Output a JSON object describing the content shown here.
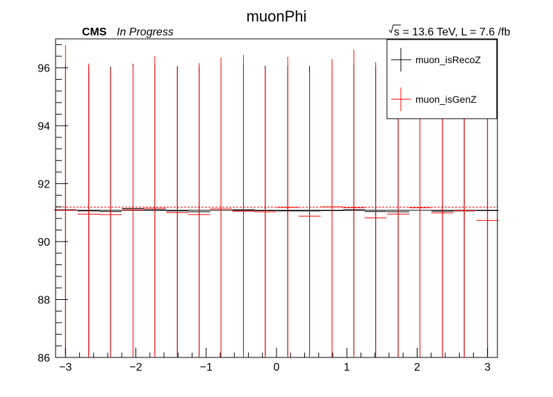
{
  "chart_data": {
    "type": "scatter",
    "title": "muonPhi",
    "experiment": "CMS",
    "status": "In Progress",
    "lumi_label": "s = 13.6 TeV, L = 7.6 /fb",
    "xlabel": "",
    "ylabel": "",
    "xlim": [
      -3.1416,
      3.1416
    ],
    "ylim": [
      86,
      97
    ],
    "x_ticks": [
      -3,
      -2,
      -1,
      0,
      1,
      2,
      3
    ],
    "y_ticks": [
      86,
      88,
      90,
      92,
      94,
      96
    ],
    "legend_position": "top-right",
    "reference_lines": [
      {
        "series": "muon_isRecoZ",
        "y": 91.08,
        "style": "solid",
        "color": "#000000"
      },
      {
        "series": "muon_isGenZ",
        "y": 91.19,
        "style": "dashed",
        "color": "#ff0000"
      }
    ],
    "series": [
      {
        "name": "muon_isRecoZ",
        "color": "#000000",
        "x": [
          -3.0,
          -2.67,
          -2.36,
          -2.04,
          -1.73,
          -1.41,
          -1.1,
          -0.79,
          -0.47,
          -0.16,
          0.16,
          0.47,
          0.79,
          1.1,
          1.41,
          1.73,
          2.04,
          2.36,
          2.67,
          3.0
        ],
        "y": [
          91.1,
          91.06,
          91.04,
          91.14,
          91.1,
          91.06,
          91.03,
          91.08,
          91.1,
          91.07,
          91.06,
          91.06,
          91.07,
          91.1,
          91.04,
          91.03,
          91.08,
          91.05,
          91.06,
          91.07
        ],
        "err_low": [
          5.0,
          5.0,
          5.0,
          5.0,
          5.0,
          5.0,
          5.0,
          5.0,
          5.0,
          5.0,
          5.0,
          5.0,
          5.0,
          5.0,
          5.0,
          5.0,
          5.0,
          5.0,
          5.0,
          5.0
        ],
        "err_high": [
          5.0,
          5.0,
          5.0,
          5.0,
          5.0,
          5.0,
          5.0,
          5.0,
          5.0,
          5.0,
          5.0,
          5.0,
          5.0,
          5.0,
          5.0,
          5.0,
          5.0,
          5.0,
          5.0,
          5.0
        ]
      },
      {
        "name": "muon_isGenZ",
        "color": "#ff0000",
        "x": [
          -3.0,
          -2.67,
          -2.36,
          -2.04,
          -1.73,
          -1.41,
          -1.1,
          -0.79,
          -0.47,
          -0.16,
          0.16,
          0.47,
          0.79,
          1.1,
          1.41,
          1.73,
          2.04,
          2.36,
          2.67,
          3.0
        ],
        "y": [
          91.08,
          90.95,
          90.93,
          91.1,
          91.15,
          91.0,
          90.93,
          91.13,
          91.05,
          91.03,
          91.18,
          90.88,
          91.2,
          91.17,
          90.82,
          90.95,
          91.17,
          90.99,
          91.07,
          90.73
        ],
        "err_low": [
          5.0,
          4.95,
          4.93,
          5.1,
          5.15,
          5.0,
          4.93,
          5.13,
          5.05,
          5.03,
          5.18,
          4.88,
          5.2,
          5.17,
          4.82,
          4.95,
          5.17,
          4.99,
          5.07,
          4.73
        ],
        "err_high": [
          5.7,
          5.2,
          5.05,
          5.0,
          5.25,
          5.05,
          5.23,
          5.23,
          5.4,
          4.95,
          5.2,
          4.97,
          5.1,
          5.45,
          5.38,
          5.05,
          5.03,
          5.01,
          4.93,
          5.27
        ]
      }
    ]
  }
}
